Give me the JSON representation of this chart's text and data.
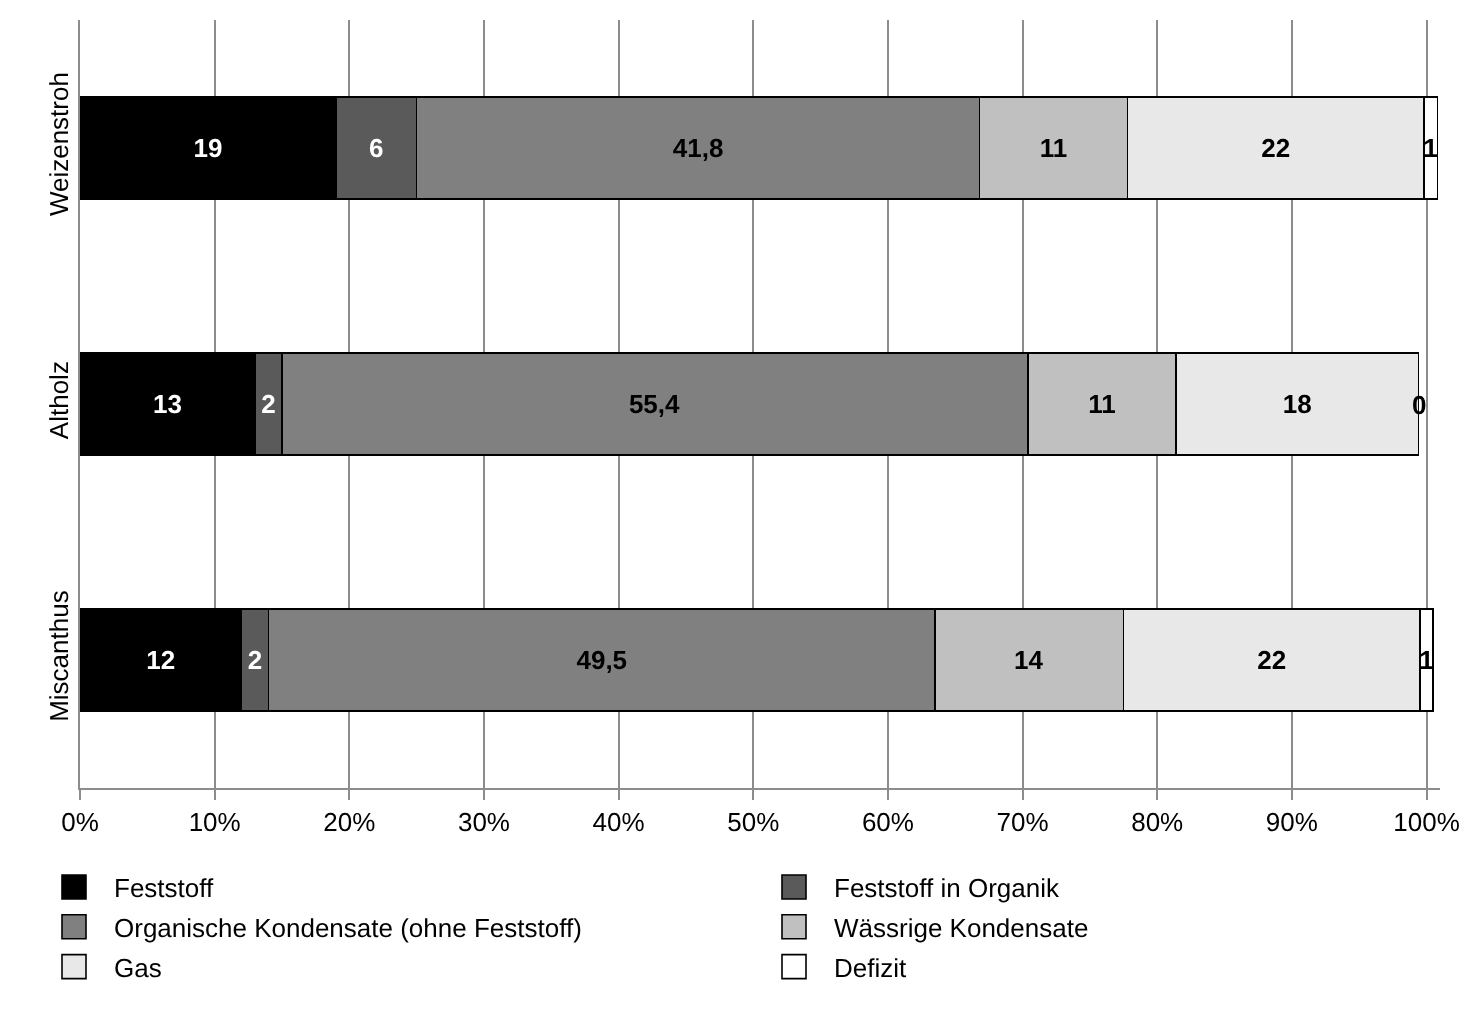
{
  "chart_data": {
    "type": "bar",
    "orientation": "horizontal",
    "stacked": true,
    "categories": [
      "Weizenstroh",
      "Altholz",
      "Miscanthus"
    ],
    "series": [
      {
        "name": "Feststoff",
        "color": "#000000",
        "values": [
          19,
          13,
          12
        ],
        "value_labels": [
          "19",
          "13",
          "12"
        ]
      },
      {
        "name": "Feststoff in Organik",
        "color": "#5a5a5a",
        "values": [
          6,
          2,
          2
        ],
        "value_labels": [
          "6",
          "2",
          "2"
        ]
      },
      {
        "name": "Organische Kondensate (ohne Feststoff)",
        "color": "#808080",
        "values": [
          41.8,
          55.4,
          49.5
        ],
        "value_labels": [
          "41,8",
          "55,4",
          "49,5"
        ]
      },
      {
        "name": "Wässrige Kondensate",
        "color": "#c0c0c0",
        "values": [
          11,
          11,
          14
        ],
        "value_labels": [
          "11",
          "11",
          "14"
        ]
      },
      {
        "name": "Gas",
        "color": "#e8e8e8",
        "values": [
          22,
          18,
          22
        ],
        "value_labels": [
          "22",
          "18",
          "22"
        ]
      },
      {
        "name": "Defizit",
        "color": "#ffffff",
        "values": [
          1,
          0,
          1
        ],
        "value_labels": [
          "1",
          "0",
          "1"
        ]
      }
    ],
    "xlim": [
      0,
      101
    ],
    "xticks": [
      {
        "value": 0,
        "label": "0%"
      },
      {
        "value": 10,
        "label": "10%"
      },
      {
        "value": 20,
        "label": "20%"
      },
      {
        "value": 30,
        "label": "30%"
      },
      {
        "value": 40,
        "label": "40%"
      },
      {
        "value": 50,
        "label": "50%"
      },
      {
        "value": 60,
        "label": "60%"
      },
      {
        "value": 70,
        "label": "70%"
      },
      {
        "value": 80,
        "label": "80%"
      },
      {
        "value": 90,
        "label": "90%"
      },
      {
        "value": 100,
        "label": "100%"
      }
    ],
    "grid": "x",
    "legend": "bottom"
  }
}
